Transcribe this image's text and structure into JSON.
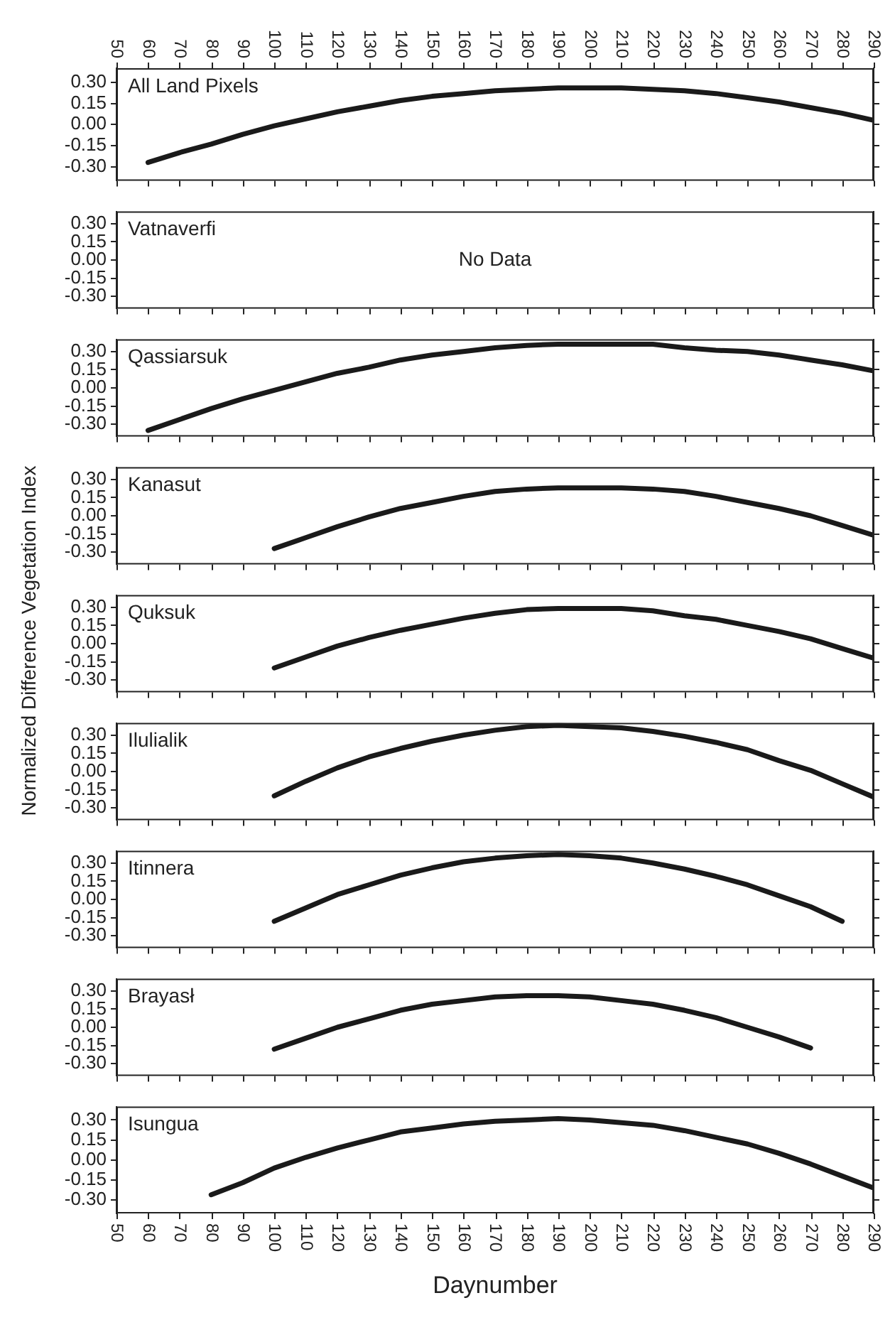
{
  "chart_data": [
    {
      "type": "line",
      "title": "All Land Pixels",
      "xlim": [
        50,
        290
      ],
      "xticks": [
        50,
        60,
        70,
        80,
        90,
        100,
        110,
        120,
        130,
        140,
        150,
        160,
        170,
        180,
        190,
        200,
        210,
        220,
        230,
        240,
        250,
        260,
        270,
        280,
        290
      ],
      "ylim": [
        -0.4,
        0.4
      ],
      "yticks": [
        {
          "value": -0.3,
          "label": "-0.30"
        },
        {
          "value": -0.15,
          "label": "-0.15"
        },
        {
          "value": 0,
          "label": "0.00"
        },
        {
          "value": 0.15,
          "label": "0.15"
        },
        {
          "value": 0.3,
          "label": "0.30"
        }
      ],
      "color": "#1a1a1a",
      "x": [
        60,
        70,
        80,
        90,
        100,
        110,
        120,
        130,
        140,
        150,
        160,
        170,
        180,
        190,
        200,
        210,
        220,
        230,
        240,
        250,
        260,
        270,
        280,
        290
      ],
      "values": [
        -0.27,
        -0.2,
        -0.14,
        -0.07,
        -0.01,
        0.04,
        0.09,
        0.13,
        0.17,
        0.2,
        0.22,
        0.24,
        0.25,
        0.26,
        0.26,
        0.26,
        0.25,
        0.24,
        0.22,
        0.19,
        0.16,
        0.12,
        0.08,
        0.03
      ]
    },
    {
      "type": "line",
      "title": "Vatnaverfi",
      "annotations": [
        "No Data"
      ],
      "tick_labels": "y",
      "xlim": [
        50,
        290
      ],
      "xticks": [
        50,
        60,
        70,
        80,
        90,
        100,
        110,
        120,
        130,
        140,
        150,
        160,
        170,
        180,
        190,
        200,
        210,
        220,
        230,
        240,
        250,
        260,
        270,
        280,
        290
      ],
      "ylim": [
        -0.4,
        0.4
      ],
      "yticks": [
        {
          "value": -0.3,
          "label": "-0.30"
        },
        {
          "value": -0.15,
          "label": "-0.15"
        },
        {
          "value": 0,
          "label": "0.00"
        },
        {
          "value": 0.15,
          "label": "0.15"
        },
        {
          "value": 0.3,
          "label": "0.30"
        }
      ],
      "color": "#1a1a1a"
    },
    {
      "type": "line",
      "title": "Qassiarsuk",
      "tick_labels": "y",
      "xlim": [
        50,
        290
      ],
      "xticks": [
        50,
        60,
        70,
        80,
        90,
        100,
        110,
        120,
        130,
        140,
        150,
        160,
        170,
        180,
        190,
        200,
        210,
        220,
        230,
        240,
        250,
        260,
        270,
        280,
        290
      ],
      "ylim": [
        -0.4,
        0.4
      ],
      "yticks": [
        {
          "value": -0.3,
          "label": "-0.30"
        },
        {
          "value": -0.15,
          "label": "-0.15"
        },
        {
          "value": 0,
          "label": "0.00"
        },
        {
          "value": 0.15,
          "label": "0.15"
        },
        {
          "value": 0.3,
          "label": "0.30"
        }
      ],
      "color": "#1a1a1a",
      "x": [
        60,
        70,
        80,
        90,
        100,
        110,
        120,
        130,
        140,
        150,
        160,
        170,
        180,
        190,
        200,
        210,
        220,
        230,
        240,
        250,
        260,
        270,
        280,
        290
      ],
      "values": [
        -0.35,
        -0.26,
        -0.17,
        -0.09,
        -0.02,
        0.05,
        0.12,
        0.17,
        0.23,
        0.27,
        0.3,
        0.33,
        0.35,
        0.36,
        0.36,
        0.36,
        0.36,
        0.33,
        0.31,
        0.3,
        0.27,
        0.23,
        0.19,
        0.14
      ]
    },
    {
      "type": "line",
      "title": "Kanasut",
      "tick_labels": "y",
      "xlim": [
        50,
        290
      ],
      "xticks": [
        50,
        60,
        70,
        80,
        90,
        100,
        110,
        120,
        130,
        140,
        150,
        160,
        170,
        180,
        190,
        200,
        210,
        220,
        230,
        240,
        250,
        260,
        270,
        280,
        290
      ],
      "ylim": [
        -0.4,
        0.4
      ],
      "yticks": [
        {
          "value": -0.3,
          "label": "-0.30"
        },
        {
          "value": -0.15,
          "label": "-0.15"
        },
        {
          "value": 0,
          "label": "0.00"
        },
        {
          "value": 0.15,
          "label": "0.15"
        },
        {
          "value": 0.3,
          "label": "0.30"
        }
      ],
      "color": "#1a1a1a",
      "x": [
        100,
        110,
        120,
        130,
        140,
        150,
        160,
        170,
        180,
        190,
        200,
        210,
        220,
        230,
        240,
        250,
        260,
        270,
        280,
        290
      ],
      "values": [
        -0.27,
        -0.18,
        -0.09,
        -0.01,
        0.06,
        0.11,
        0.16,
        0.2,
        0.22,
        0.23,
        0.23,
        0.23,
        0.22,
        0.2,
        0.16,
        0.11,
        0.06,
        0,
        -0.08,
        -0.16
      ]
    },
    {
      "type": "line",
      "title": "Quksuk",
      "ylabel": "Normalized Difference Vegetation Index",
      "tick_labels": "y",
      "xlim": [
        50,
        290
      ],
      "xticks": [
        50,
        60,
        70,
        80,
        90,
        100,
        110,
        120,
        130,
        140,
        150,
        160,
        170,
        180,
        190,
        200,
        210,
        220,
        230,
        240,
        250,
        260,
        270,
        280,
        290
      ],
      "ylim": [
        -0.4,
        0.4
      ],
      "yticks": [
        {
          "value": -0.3,
          "label": "-0.30"
        },
        {
          "value": -0.15,
          "label": "-0.15"
        },
        {
          "value": 0,
          "label": "0.00"
        },
        {
          "value": 0.15,
          "label": "0.15"
        },
        {
          "value": 0.3,
          "label": "0.30"
        }
      ],
      "color": "#1a1a1a",
      "x": [
        100,
        110,
        120,
        130,
        140,
        150,
        160,
        170,
        180,
        190,
        200,
        210,
        220,
        230,
        240,
        250,
        260,
        270,
        280,
        290
      ],
      "values": [
        -0.2,
        -0.11,
        -0.02,
        0.05,
        0.11,
        0.16,
        0.21,
        0.25,
        0.28,
        0.29,
        0.29,
        0.29,
        0.27,
        0.23,
        0.2,
        0.15,
        0.1,
        0.04,
        -0.04,
        -0.12
      ]
    },
    {
      "type": "line",
      "title": "Ilulialik",
      "tick_labels": "y",
      "xlim": [
        50,
        290
      ],
      "xticks": [
        50,
        60,
        70,
        80,
        90,
        100,
        110,
        120,
        130,
        140,
        150,
        160,
        170,
        180,
        190,
        200,
        210,
        220,
        230,
        240,
        250,
        260,
        270,
        280,
        290
      ],
      "ylim": [
        -0.4,
        0.4
      ],
      "yticks": [
        {
          "value": -0.3,
          "label": "-0.30"
        },
        {
          "value": -0.15,
          "label": "-0.15"
        },
        {
          "value": 0,
          "label": "0.00"
        },
        {
          "value": 0.15,
          "label": "0.15"
        },
        {
          "value": 0.3,
          "label": "0.30"
        }
      ],
      "color": "#1a1a1a",
      "x": [
        100,
        110,
        120,
        130,
        140,
        150,
        160,
        170,
        180,
        190,
        200,
        210,
        220,
        230,
        240,
        250,
        260,
        270,
        280,
        290
      ],
      "values": [
        -0.2,
        -0.08,
        0.03,
        0.12,
        0.19,
        0.25,
        0.3,
        0.34,
        0.37,
        0.38,
        0.37,
        0.36,
        0.33,
        0.29,
        0.24,
        0.18,
        0.09,
        0.01,
        -0.1,
        -0.21
      ]
    },
    {
      "type": "line",
      "title": "Itinnera",
      "tick_labels": "y",
      "xlim": [
        50,
        290
      ],
      "xticks": [
        50,
        60,
        70,
        80,
        90,
        100,
        110,
        120,
        130,
        140,
        150,
        160,
        170,
        180,
        190,
        200,
        210,
        220,
        230,
        240,
        250,
        260,
        270,
        280,
        290
      ],
      "ylim": [
        -0.4,
        0.4
      ],
      "yticks": [
        {
          "value": -0.3,
          "label": "-0.30"
        },
        {
          "value": -0.15,
          "label": "-0.15"
        },
        {
          "value": 0,
          "label": "0.00"
        },
        {
          "value": 0.15,
          "label": "0.15"
        },
        {
          "value": 0.3,
          "label": "0.30"
        }
      ],
      "color": "#1a1a1a",
      "x": [
        100,
        110,
        120,
        130,
        140,
        150,
        160,
        170,
        180,
        190,
        200,
        210,
        220,
        230,
        240,
        250,
        260,
        270,
        280
      ],
      "values": [
        -0.18,
        -0.07,
        0.04,
        0.12,
        0.2,
        0.26,
        0.31,
        0.34,
        0.36,
        0.37,
        0.36,
        0.34,
        0.3,
        0.25,
        0.19,
        0.12,
        0.03,
        -0.06,
        -0.18
      ]
    },
    {
      "type": "line",
      "title": "Brayasł",
      "tick_labels": "y",
      "xlim": [
        50,
        290
      ],
      "xticks": [
        50,
        60,
        70,
        80,
        90,
        100,
        110,
        120,
        130,
        140,
        150,
        160,
        170,
        180,
        190,
        200,
        210,
        220,
        230,
        240,
        250,
        260,
        270,
        280,
        290
      ],
      "ylim": [
        -0.4,
        0.4
      ],
      "yticks": [
        {
          "value": -0.3,
          "label": "-0.30"
        },
        {
          "value": -0.15,
          "label": "-0.15"
        },
        {
          "value": 0,
          "label": "0.00"
        },
        {
          "value": 0.15,
          "label": "0.15"
        },
        {
          "value": 0.3,
          "label": "0.30"
        }
      ],
      "color": "#1a1a1a",
      "x": [
        100,
        110,
        120,
        130,
        140,
        150,
        160,
        170,
        180,
        190,
        200,
        210,
        220,
        230,
        240,
        250,
        260,
        270
      ],
      "values": [
        -0.18,
        -0.09,
        0,
        0.07,
        0.14,
        0.19,
        0.22,
        0.25,
        0.26,
        0.26,
        0.25,
        0.22,
        0.19,
        0.14,
        0.08,
        0,
        -0.08,
        -0.17
      ]
    },
    {
      "type": "line",
      "title": "Isungua",
      "xlabel": "Daynumber",
      "xlim": [
        50,
        290
      ],
      "xticks": [
        50,
        60,
        70,
        80,
        90,
        100,
        110,
        120,
        130,
        140,
        150,
        160,
        170,
        180,
        190,
        200,
        210,
        220,
        230,
        240,
        250,
        260,
        270,
        280,
        290
      ],
      "ylim": [
        -0.4,
        0.4
      ],
      "yticks": [
        {
          "value": -0.3,
          "label": "-0.30"
        },
        {
          "value": -0.15,
          "label": "-0.15"
        },
        {
          "value": 0,
          "label": "0.00"
        },
        {
          "value": 0.15,
          "label": "0.15"
        },
        {
          "value": 0.3,
          "label": "0.30"
        }
      ],
      "color": "#1a1a1a",
      "x": [
        80,
        90,
        100,
        110,
        120,
        130,
        140,
        150,
        160,
        170,
        180,
        190,
        200,
        210,
        220,
        230,
        240,
        250,
        260,
        270,
        280,
        290
      ],
      "values": [
        -0.26,
        -0.17,
        -0.06,
        0.02,
        0.09,
        0.15,
        0.21,
        0.24,
        0.27,
        0.29,
        0.3,
        0.31,
        0.3,
        0.28,
        0.26,
        0.22,
        0.17,
        0.12,
        0.05,
        -0.03,
        -0.12,
        -0.21
      ]
    }
  ]
}
